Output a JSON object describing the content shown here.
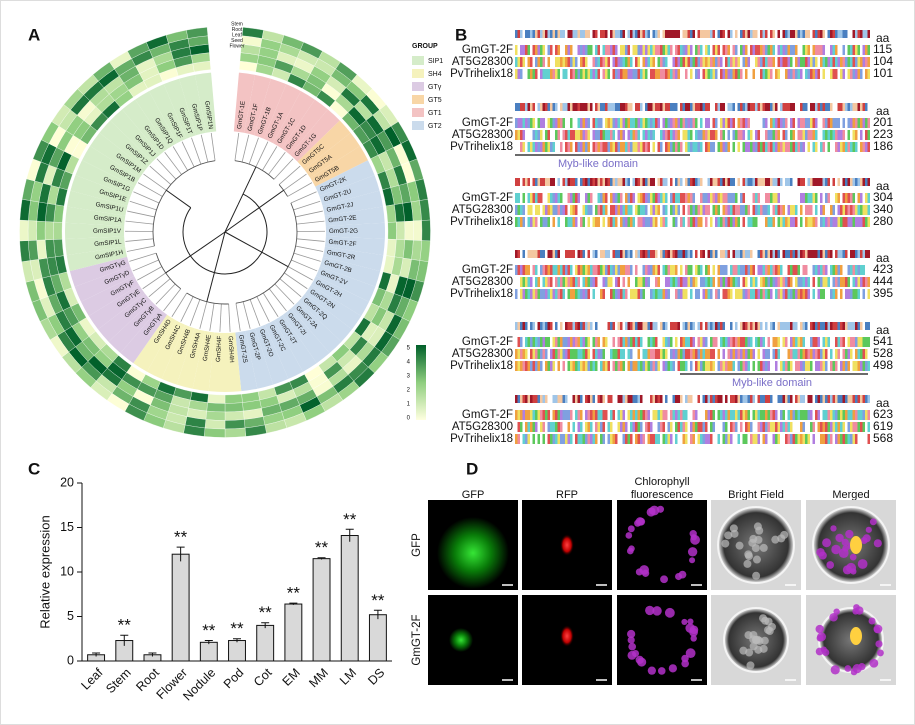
{
  "panel_labels": [
    "A",
    "B",
    "C",
    "D"
  ],
  "tree": {
    "group_title": "GROUP",
    "groups": [
      {
        "name": "SIP1",
        "color": "#d5ecc9",
        "leaves": [
          "GmSIP1H",
          "GmSIP1L",
          "GmSIP1V",
          "GmSIP1A",
          "GmSIP1U",
          "GmSIP1E",
          "GmSIP1G",
          "GmSIP1B",
          "GmSIP1M",
          "GmSIP1Z",
          "GmSIP1J",
          "GmSIP1D",
          "GmSIP1Q",
          "GmSIP1F",
          "GmSIP1T",
          "GmSIP1P",
          "GmSIP1N"
        ]
      },
      {
        "name": "SH4",
        "color": "#f5f2bd",
        "leaves": [
          "GmSH4H",
          "GmSH4F",
          "GmSH4E",
          "GmSH4A",
          "GmSH4B",
          "GmSH4C",
          "GmSH4D"
        ]
      },
      {
        "name": "GTγ",
        "color": "#dccbe3",
        "leaves": [
          "GmGTγA",
          "GmGTγB",
          "GmGTγC",
          "GmGTγE",
          "GmGTγF",
          "GmGTγD",
          "GmGTγG"
        ]
      },
      {
        "name": "GT5",
        "color": "#f8d6a6",
        "leaves": [
          "GmGT5C",
          "GmGT5A",
          "GmGT5B"
        ]
      },
      {
        "name": "GT1",
        "color": "#f3c3c3",
        "leaves": [
          "GmGT-1E",
          "GmGT-1F",
          "GmGT-1B",
          "GmGT-1A",
          "GmGT-1C",
          "GmGT-1D",
          "GmGT-1G"
        ]
      },
      {
        "name": "GT2",
        "color": "#cbdbec",
        "leaves": [
          "GmGT-2K",
          "GmGT-2U",
          "GmGT-2J",
          "GmGT-2E",
          "GmGT-2G",
          "GmGT-2F",
          "GmGT-2R",
          "GmGT-2B",
          "GmGT-2V",
          "GmGT-2H",
          "GmGT-2N",
          "GmGT-2Q",
          "GmGT-2A",
          "GmGT-2I",
          "GmGT-2T",
          "GmGT-2C",
          "GmGT-2O",
          "GmGT-2P",
          "GmGT-2S"
        ]
      }
    ],
    "heatmap_labels": [
      "Stem",
      "Root",
      "Leaf",
      "Seed",
      "Flower"
    ],
    "colorbar_ticks": [
      5,
      4,
      3,
      2,
      1,
      0
    ]
  },
  "alignment": {
    "aa_label": "aa",
    "sequences": [
      "GmGT-2F",
      "AT5G28300",
      "PvTrihelix18"
    ],
    "blocks": [
      [
        115,
        104,
        101
      ],
      [
        201,
        223,
        186
      ],
      [
        304,
        340,
        280
      ],
      [
        423,
        444,
        395
      ],
      [
        541,
        528,
        498
      ],
      [
        623,
        619,
        568
      ]
    ],
    "domain_label": "Myb-like domain"
  },
  "chart_data": {
    "type": "bar",
    "categories": [
      "Leaf",
      "Stem",
      "Root",
      "Flower",
      "Nodule",
      "Pod",
      "Cot",
      "EM",
      "MM",
      "LM",
      "DS"
    ],
    "values": [
      0.7,
      2.3,
      0.7,
      12.0,
      2.1,
      2.3,
      4.0,
      6.4,
      11.5,
      14.1,
      5.2
    ],
    "errors": [
      0.2,
      0.6,
      0.2,
      0.8,
      0.2,
      0.2,
      0.3,
      0.1,
      0.1,
      0.7,
      0.5
    ],
    "significance": [
      null,
      "**",
      null,
      "**",
      "**",
      "**",
      "**",
      "**",
      "**",
      "**",
      "**"
    ],
    "ylabel": "Relative expression",
    "ylim": [
      0,
      20
    ],
    "yticks": [
      0,
      5,
      10,
      15,
      20
    ],
    "color": "#d9d9d9"
  },
  "microscopy": {
    "columns": [
      "GFP",
      "RFP",
      "Chlorophyll fluorescence",
      "Bright Field",
      "Merged"
    ],
    "rows": [
      "GFP",
      "GmGT-2F"
    ]
  }
}
